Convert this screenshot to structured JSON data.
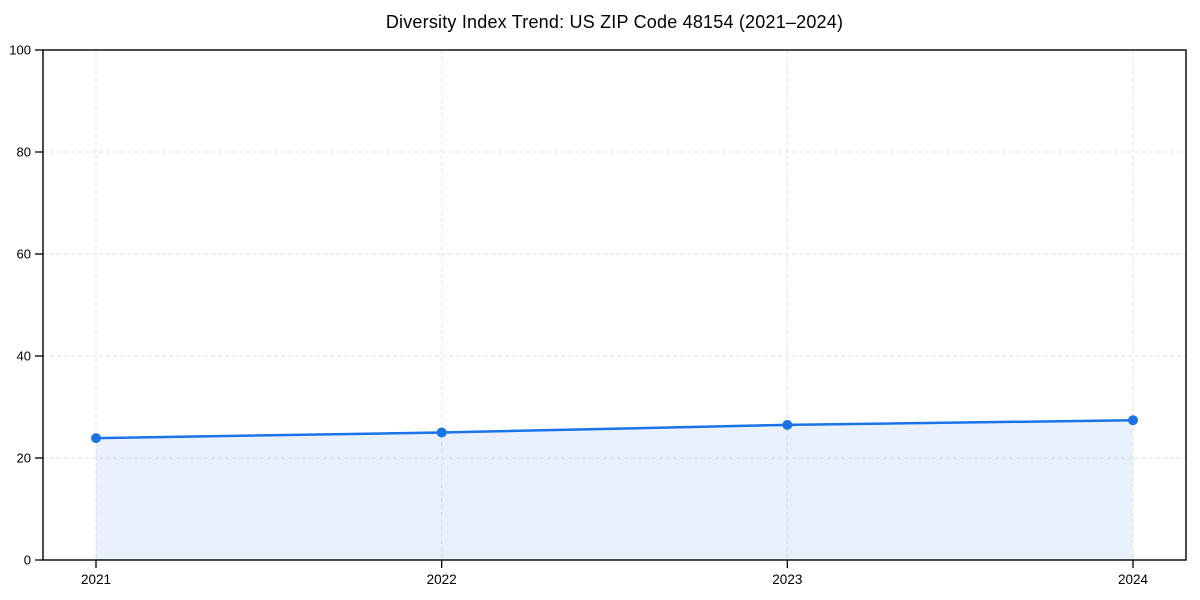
{
  "figure": {
    "background_color": "#ffffff"
  },
  "chart_data": {
    "type": "line",
    "title": "Diversity Index Trend: US ZIP Code 48154 (2021–2024)",
    "x": [
      2021,
      2022,
      2023,
      2024
    ],
    "xticklabels": [
      "2021",
      "2022",
      "2023",
      "2024"
    ],
    "series": [
      {
        "name": "Diversity Index",
        "values": [
          23.9,
          25.0,
          26.5,
          27.4
        ]
      }
    ],
    "xlabel": "",
    "ylabel": "",
    "ylim": [
      0,
      100
    ],
    "yticks": [
      0,
      20,
      40,
      60,
      80,
      100
    ],
    "grid": true,
    "grid_style": "dashed",
    "legend": "none",
    "area_fill": true,
    "marker": "circle",
    "line_color": "#1a73e8",
    "fill_color": "rgba(26, 115, 232, 0.10)",
    "grid_color": "#e3e3e3",
    "spine_color": "#000000",
    "tick_label_color": "#000000"
  }
}
